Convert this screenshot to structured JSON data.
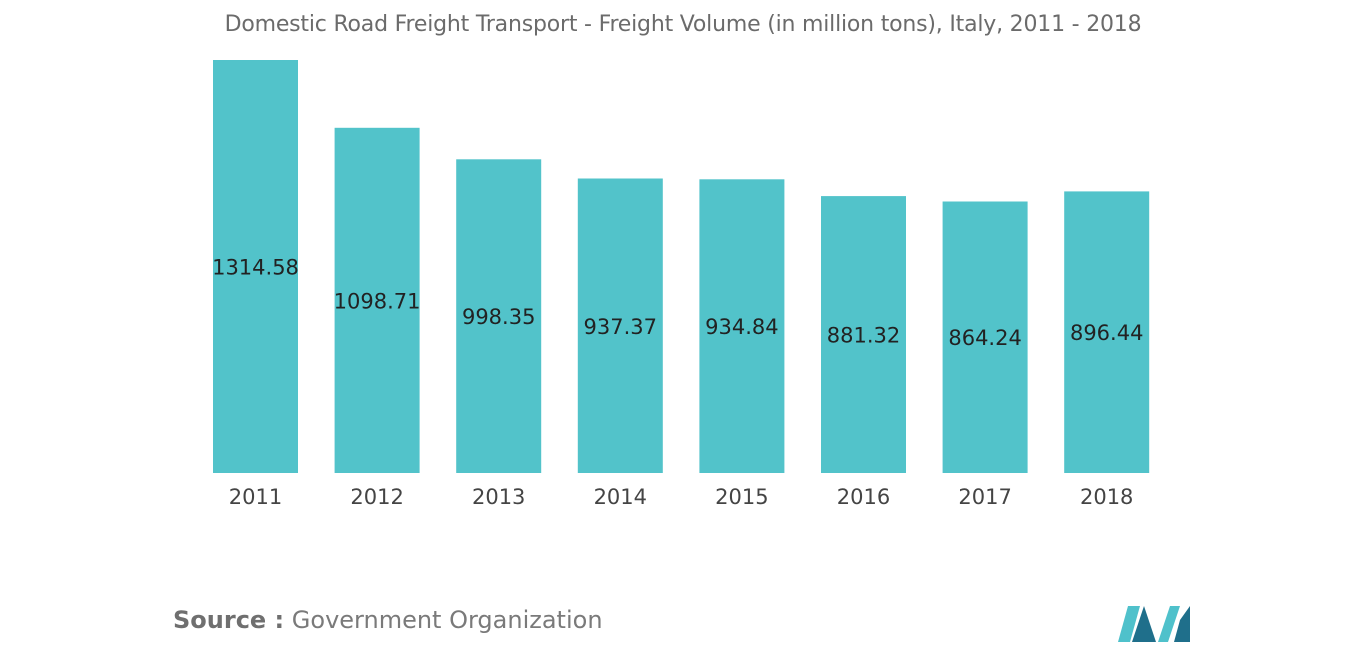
{
  "colors": {
    "bar": "#52c3ca",
    "bar_label": "#222222",
    "tick_label": "#444444",
    "title": "#6b6b6b",
    "logo_dark": "#1f6f8b",
    "logo_light": "#4fc1cb"
  },
  "chart_data": {
    "type": "bar",
    "title": "Domestic Road Freight Transport - Freight Volume (in million tons), Italy, 2011 - 2018",
    "xlabel": "",
    "ylabel": "",
    "categories": [
      "2011",
      "2012",
      "2013",
      "2014",
      "2015",
      "2016",
      "2017",
      "2018"
    ],
    "values": [
      1314.58,
      1098.71,
      998.35,
      937.37,
      934.84,
      881.32,
      864.24,
      896.44
    ],
    "value_labels": [
      "1314.58",
      "1098.71",
      "998.35",
      "937.37",
      "934.84",
      "881.32",
      "864.24",
      "896.44"
    ],
    "grid": false,
    "legend": "none"
  },
  "source": {
    "label": "Source :",
    "value": "Government Organization"
  },
  "logo": {
    "icon": "mordor-intelligence-logo-icon"
  }
}
